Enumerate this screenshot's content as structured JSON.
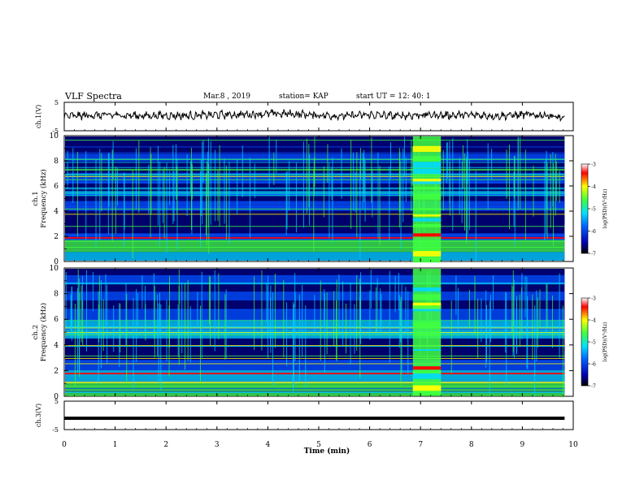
{
  "header": {
    "title": "VLF Spectra",
    "date": "Mar.8 , 2019",
    "station": "station= KAP",
    "start": "start UT = 12: 40: 1"
  },
  "chart_data": [
    {
      "type": "line",
      "panel": "ch1-waveform",
      "ylabel": "ch.1(V)",
      "ylim": [
        -5,
        5
      ],
      "yticks": [
        "5",
        "-5"
      ],
      "xlim": [
        0,
        10
      ],
      "x": [
        0,
        0.5,
        1,
        1.5,
        2,
        2.5,
        3,
        3.5,
        4,
        4.5,
        5,
        5.5,
        6,
        6.5,
        7,
        7.5,
        8,
        8.5,
        9,
        9.5,
        9.83
      ],
      "y": [
        0.1,
        0.4,
        0.5,
        0.3,
        0.4,
        0.3,
        0.6,
        0.7,
        1.0,
        0.9,
        0.5,
        0.2,
        0.6,
        0.2,
        0.6,
        0.5,
        0.5,
        0.3,
        0.6,
        0.5,
        -0.9
      ]
    },
    {
      "type": "heatmap",
      "panel": "ch1-spectrogram",
      "ylabel": "ch.1\nFrequency (kHz)",
      "ylim": [
        0,
        10
      ],
      "yticks": [
        "0",
        "2",
        "4",
        "6",
        "8",
        "10"
      ],
      "xlim": [
        0,
        10
      ],
      "burst_window_min": [
        6.85,
        7.4
      ],
      "colorbar": {
        "label": "log(PSD)(V²/Hz)",
        "range": [
          -7,
          -3
        ],
        "ticks": [
          "-3",
          "-4",
          "-5",
          "-6",
          "-7"
        ]
      }
    },
    {
      "type": "heatmap",
      "panel": "ch2-spectrogram",
      "ylabel": "ch.2\nFrequency (kHz)",
      "ylim": [
        0,
        10
      ],
      "yticks": [
        "0",
        "2",
        "4",
        "6",
        "8",
        "10"
      ],
      "xlim": [
        0,
        10
      ],
      "burst_window_min": [
        6.85,
        7.4
      ],
      "colorbar": {
        "label": "log(PSD)(V²/Hz)",
        "range": [
          -7,
          -3
        ],
        "ticks": [
          "-3",
          "-4",
          "-5",
          "-6",
          "-7"
        ]
      }
    },
    {
      "type": "line",
      "panel": "ch3-waveform",
      "ylabel": "ch.3(V)",
      "ylim": [
        -5,
        5
      ],
      "yticks": [
        "5",
        "-5"
      ],
      "xlim": [
        0,
        10
      ],
      "x": [
        0,
        9.83
      ],
      "y": [
        -1,
        -1
      ]
    }
  ],
  "xaxis": {
    "label": "Time (min)",
    "ticks": [
      "0",
      "1",
      "2",
      "3",
      "4",
      "5",
      "6",
      "7",
      "8",
      "9",
      "10"
    ]
  },
  "colors": {
    "dark": "#00006e",
    "mid": "#0050ff",
    "cyan": "#00d8ff",
    "green": "#40ff40",
    "yellow": "#ffff00",
    "red": "#ff0000"
  }
}
